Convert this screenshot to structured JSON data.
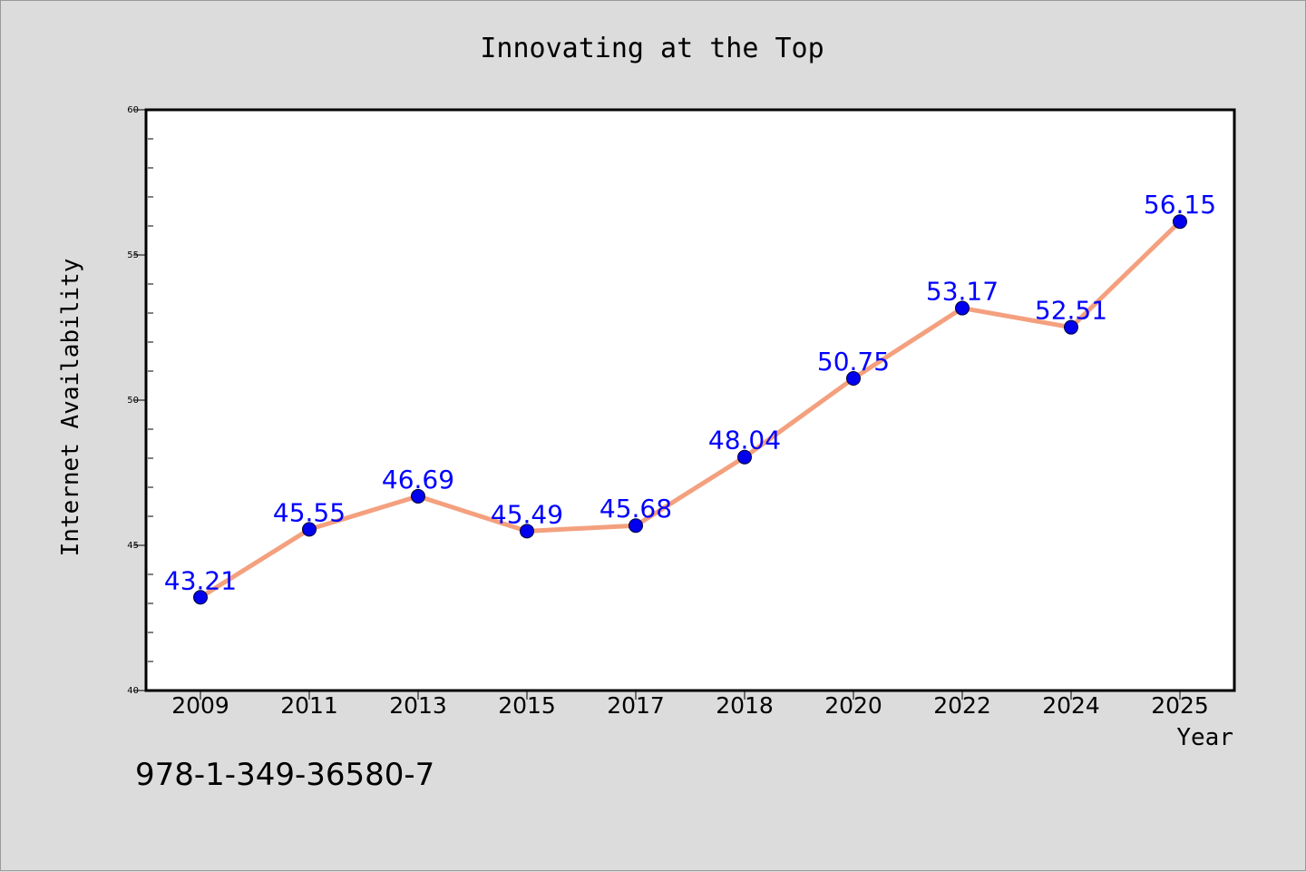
{
  "chart_data": {
    "type": "line",
    "title": "Innovating at the Top",
    "xlabel": "Year",
    "ylabel": "Internet Availability",
    "categories": [
      "2009",
      "2011",
      "2013",
      "2015",
      "2017",
      "2018",
      "2020",
      "2022",
      "2024",
      "2025"
    ],
    "series": [
      {
        "values": [
          43.21,
          45.55,
          46.69,
          45.49,
          45.68,
          48.04,
          50.75,
          53.17,
          52.51,
          56.15
        ],
        "data_labels": [
          "43.21",
          "45.55",
          "46.69",
          "45.49",
          "45.68",
          "48.04",
          "50.75",
          "53.17",
          "52.51",
          "56.15"
        ]
      }
    ],
    "ylim": [
      40,
      60
    ],
    "yticks": [
      "40",
      "45",
      "50",
      "55",
      "60"
    ],
    "grid": false,
    "colors": {
      "line": "#f4a07e",
      "marker": "#0000ee",
      "label": "#0000ff",
      "plot_background": "#ffffff",
      "page_background": "#dcdcdc"
    }
  },
  "footer_text": "978-1-349-36580-7"
}
